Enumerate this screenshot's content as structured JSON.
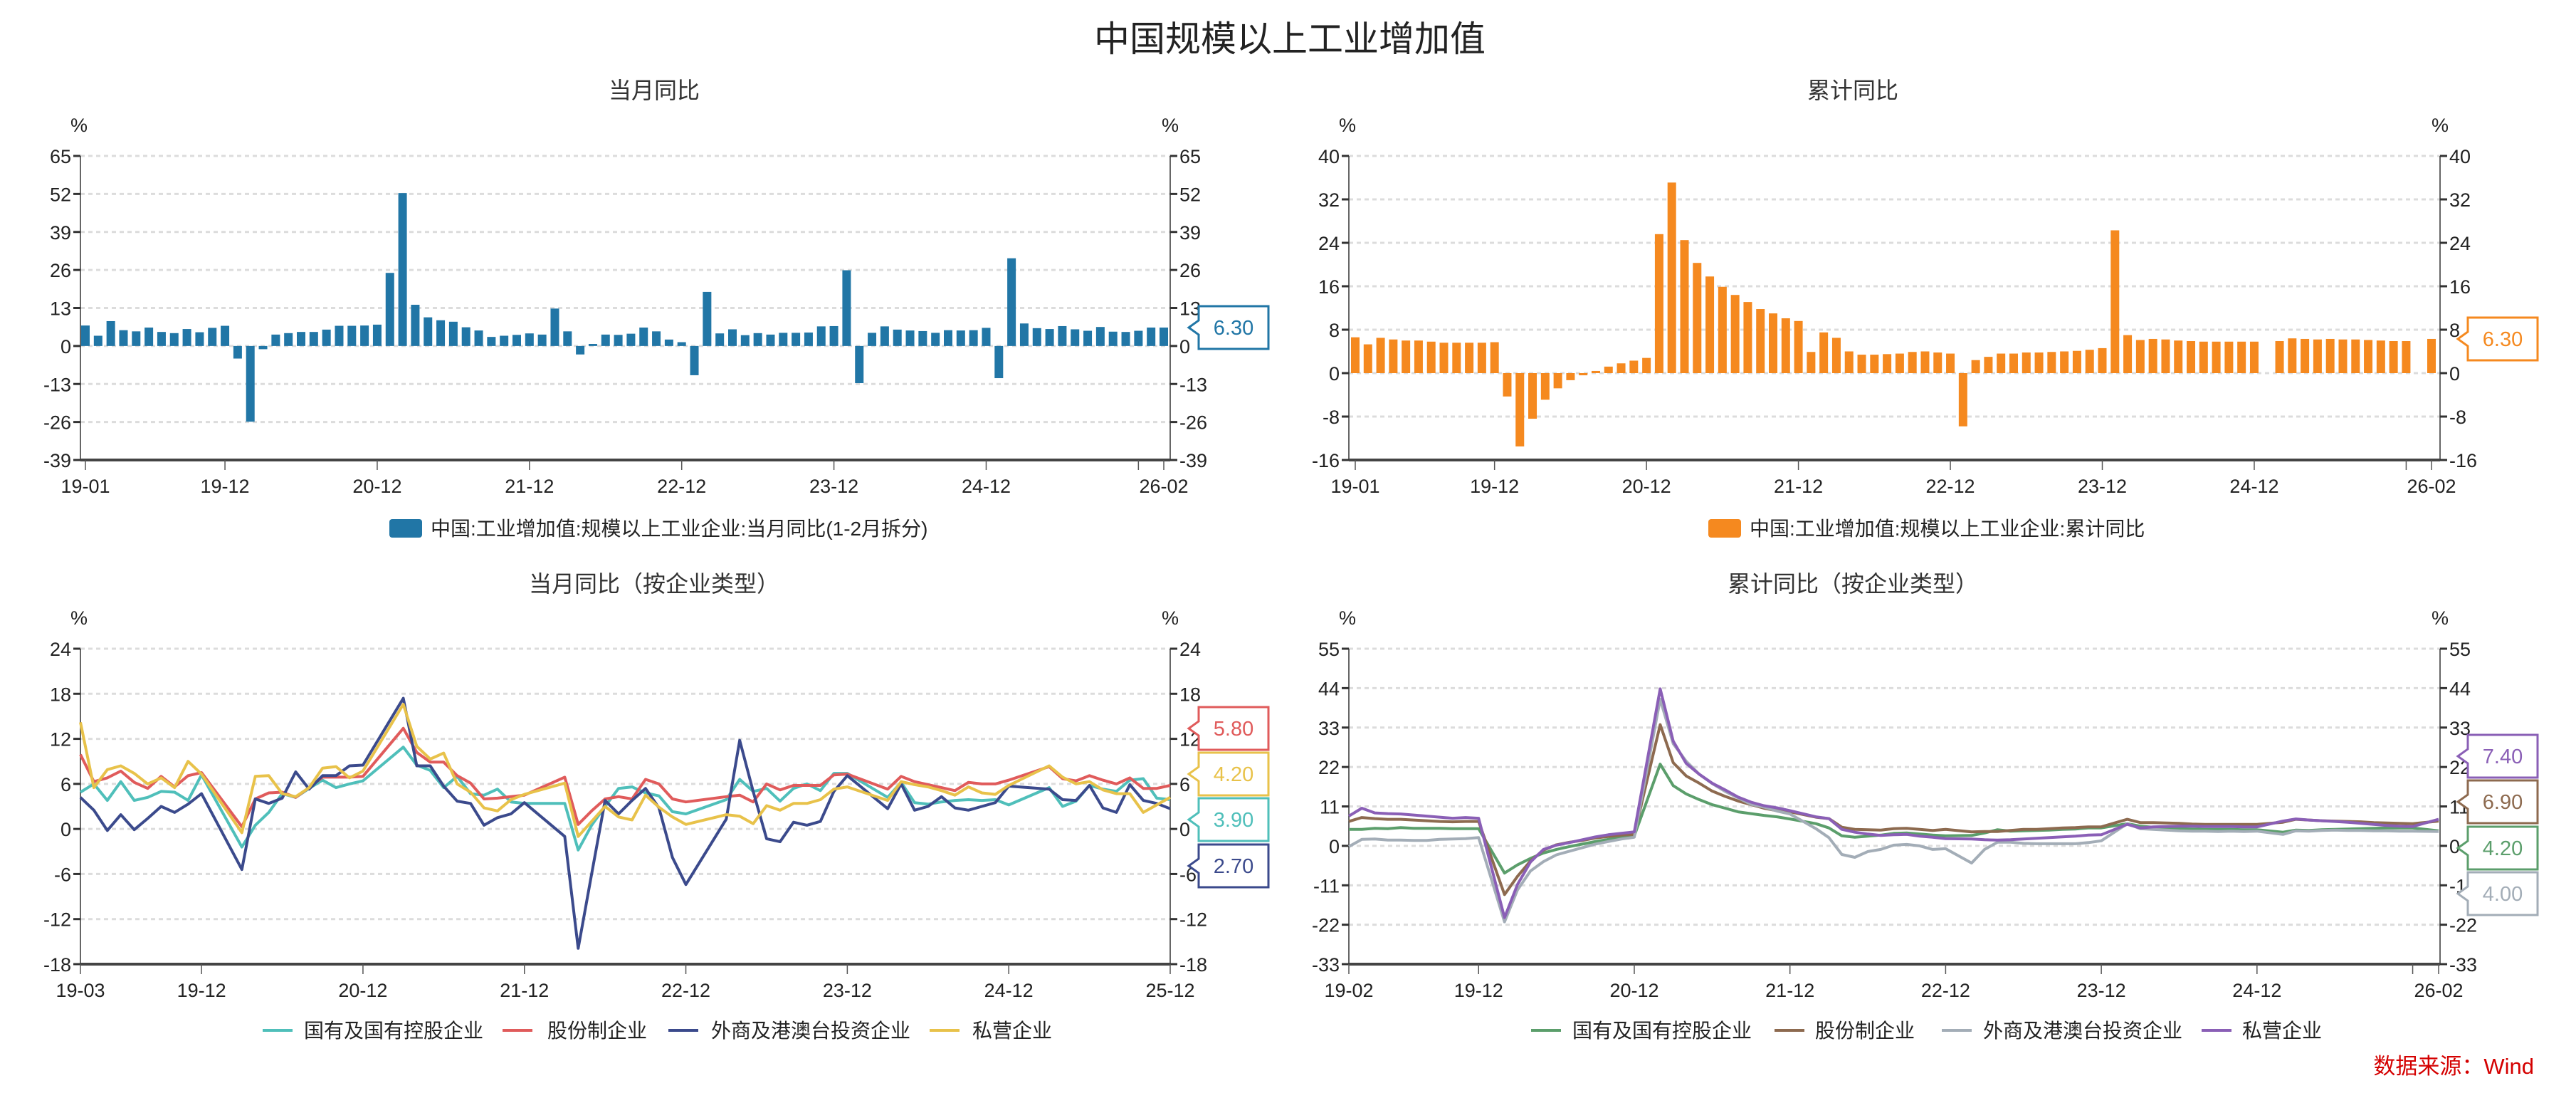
{
  "title": "中国规模以上工业增加值",
  "source": "数据来源：Wind",
  "chart_data": [
    {
      "type": "bar",
      "title": "当月同比",
      "unit_left": "%",
      "unit_right": "%",
      "ylim": [
        -39,
        65
      ],
      "yticks": [
        "65",
        "52",
        "39",
        "26",
        "13",
        "0",
        "-13",
        "-26",
        "-39"
      ],
      "xticks": [
        "19-01",
        "19-12",
        "20-12",
        "21-12",
        "22-12",
        "23-12",
        "24-12",
        "26-02"
      ],
      "x_start": "19-01",
      "x_end": "26-02",
      "grid": true,
      "legend_position": "bottom",
      "series": [
        {
          "name": "中国:工业增加值:规模以上工业企业:当月同比(1-2月拆分)",
          "color": "#2176a6",
          "last_label": "6.30",
          "values": [
            7,
            3.5,
            8.5,
            5.4,
            5,
            6.3,
            4.8,
            4.4,
            5.8,
            4.7,
            6.2,
            6.9,
            -4.3,
            -25.9,
            -1.1,
            3.9,
            4.4,
            4.8,
            4.8,
            5.6,
            6.9,
            6.9,
            7.0,
            7.3,
            25,
            52.3,
            14.1,
            9.8,
            8.8,
            8.3,
            6.4,
            5.3,
            3.1,
            3.5,
            3.8,
            4.3,
            3.9,
            12.8,
            5.0,
            -2.9,
            0.7,
            3.9,
            3.8,
            4.2,
            6.3,
            5.0,
            2.2,
            1.3,
            -10,
            18.5,
            4.3,
            5.7,
            3.7,
            4.4,
            3.9,
            4.5,
            4.5,
            4.6,
            6.7,
            6.8,
            25.9,
            -12.7,
            4.5,
            6.7,
            5.6,
            5.3,
            5.1,
            4.5,
            5.4,
            5.3,
            5.4,
            6.2,
            -11,
            30,
            7.7,
            6.1,
            5.8,
            6.8,
            5.7,
            5.2,
            6.5,
            4.9,
            4.8,
            5.2,
            6.3,
            6.3
          ]
        }
      ]
    },
    {
      "type": "bar",
      "title": "累计同比",
      "unit_left": "%",
      "unit_right": "%",
      "ylim": [
        -16,
        40
      ],
      "yticks": [
        "40",
        "32",
        "24",
        "16",
        "8",
        "0",
        "-8",
        "-16"
      ],
      "xticks": [
        "19-01",
        "19-12",
        "20-12",
        "21-12",
        "22-12",
        "23-12",
        "24-12",
        "26-02"
      ],
      "x_start": "19-01",
      "x_end": "26-02",
      "grid": true,
      "legend_position": "bottom",
      "series": [
        {
          "name": "中国:工业增加值:规模以上工业企业:累计同比",
          "color": "#f5891f",
          "last_label": "6.30",
          "values": [
            6.6,
            5.3,
            6.5,
            6.2,
            6.0,
            6.0,
            5.8,
            5.6,
            5.6,
            5.6,
            5.6,
            5.7,
            -4.3,
            -13.5,
            -8.4,
            -4.9,
            -2.8,
            -1.3,
            -0.4,
            0.4,
            1.2,
            1.8,
            2.3,
            2.8,
            25.6,
            35.1,
            24.5,
            20.3,
            17.8,
            15.9,
            14.4,
            13.1,
            11.8,
            11.0,
            10.1,
            9.6,
            3.9,
            7.5,
            6.5,
            4.0,
            3.4,
            3.4,
            3.5,
            3.6,
            3.9,
            4.0,
            3.8,
            3.6,
            -9.8,
            2.4,
            3.0,
            3.6,
            3.6,
            3.8,
            3.8,
            3.9,
            4.0,
            4.1,
            4.3,
            4.6,
            26.3,
            7.0,
            6.1,
            6.3,
            6.2,
            6.0,
            5.9,
            5.8,
            5.8,
            5.8,
            5.8,
            5.8,
            null,
            5.9,
            6.4,
            6.3,
            6.2,
            6.3,
            6.2,
            6.2,
            6.1,
            6.0,
            5.9,
            5.9,
            null,
            6.3
          ]
        }
      ]
    },
    {
      "type": "line",
      "title": "当月同比（按企业类型）",
      "unit_left": "%",
      "unit_right": "%",
      "ylim": [
        -18,
        24
      ],
      "yticks": [
        "24",
        "18",
        "12",
        "6",
        "0",
        "-6",
        "-12",
        "-18"
      ],
      "xticks": [
        "19-03",
        "19-12",
        "20-12",
        "21-12",
        "22-12",
        "23-12",
        "24-12",
        "25-12"
      ],
      "x_start": "19-03",
      "x_end": "25-12",
      "grid": true,
      "legend_position": "bottom",
      "series": [
        {
          "name": "国有及国有控股企业",
          "color": "#4fbfba",
          "last_label": "3.90",
          "values": [
            4.9,
            6.0,
            3.8,
            6.3,
            3.8,
            4.2,
            5.0,
            4.9,
            3.8,
            7.2,
            null,
            null,
            -2.4,
            0.5,
            2.2,
            4.7,
            4.2,
            5.4,
            6.5,
            5.5,
            6.0,
            6.4,
            null,
            null,
            10.9,
            8.5,
            7.8,
            5.5,
            7.0,
            4.7,
            4.5,
            5.3,
            3.6,
            3.4,
            null,
            null,
            3.4,
            -2.8,
            0.5,
            3.0,
            5.4,
            5.6,
            4.8,
            4.4,
            2.3,
            2.0,
            null,
            null,
            3.9,
            6.6,
            5.0,
            5.4,
            3.7,
            5.4,
            6.0,
            5.1,
            7.4,
            7.4,
            null,
            null,
            4.2,
            6.2,
            3.5,
            3.3,
            3.6,
            3.8,
            3.9,
            3.8,
            3.9,
            3.2,
            null,
            null,
            5.5,
            3.0,
            3.7,
            5.8,
            5.3,
            5.0,
            6.5,
            6.7,
            4.1,
            3.9
          ]
        },
        {
          "name": "股份制企业",
          "color": "#e05b5b",
          "last_label": "5.80",
          "values": [
            9.9,
            6.3,
            6.8,
            7.7,
            6.2,
            5.4,
            7.0,
            5.6,
            7.1,
            7.5,
            null,
            null,
            0.3,
            4.0,
            4.8,
            4.9,
            4.2,
            5.5,
            6.9,
            6.9,
            6.9,
            7.0,
            null,
            null,
            13.4,
            10.2,
            8.9,
            8.9,
            7.1,
            6.1,
            4.0,
            4.1,
            4.3,
            4.5,
            null,
            null,
            6.9,
            0.6,
            2.4,
            4.0,
            4.3,
            4.0,
            6.6,
            6.0,
            4.0,
            3.6,
            null,
            null,
            4.3,
            4.5,
            3.6,
            6.0,
            5.2,
            5.8,
            5.8,
            5.8,
            7.2,
            7.3,
            null,
            null,
            5.3,
            7.0,
            6.3,
            5.9,
            5.5,
            5.1,
            6.2,
            6.0,
            6.0,
            6.5,
            null,
            null,
            8.3,
            6.7,
            6.4,
            7.1,
            6.5,
            6.0,
            6.8,
            5.4,
            5.4,
            5.8
          ]
        },
        {
          "name": "外商及港澳台投资企业",
          "color": "#3b4a8c",
          "last_label": "2.70",
          "values": [
            4.2,
            2.5,
            -0.2,
            1.9,
            -0.1,
            1.4,
            3.0,
            2.2,
            3.3,
            4.7,
            null,
            null,
            -5.4,
            4.0,
            3.4,
            4.1,
            7.6,
            5.3,
            7.1,
            7.1,
            8.4,
            8.5,
            null,
            null,
            17.4,
            8.4,
            8.4,
            5.7,
            3.7,
            3.4,
            0.5,
            1.5,
            2.0,
            3.5,
            null,
            null,
            -1.0,
            -15.9,
            -6.0,
            3.8,
            2.0,
            3.8,
            5.4,
            2.8,
            -3.8,
            -7.4,
            null,
            null,
            1.3,
            11.8,
            5.0,
            -1.3,
            -1.7,
            0.9,
            0.5,
            1.0,
            5.0,
            7.1,
            null,
            null,
            2.7,
            6.0,
            2.5,
            3.0,
            4.3,
            2.8,
            2.5,
            3.0,
            3.5,
            5.7,
            null,
            null,
            5.3,
            3.9,
            3.8,
            5.8,
            2.8,
            2.2,
            5.9,
            3.8,
            3.4,
            2.7
          ]
        },
        {
          "name": "私营企业",
          "color": "#e8c24a",
          "last_label": "4.20",
          "values": [
            14.2,
            5.5,
            7.9,
            8.4,
            7.4,
            6.0,
            6.8,
            5.5,
            9.0,
            7.3,
            null,
            null,
            -0.5,
            7.0,
            7.1,
            4.7,
            4.3,
            5.5,
            8.1,
            8.3,
            6.8,
            7.7,
            null,
            null,
            16.6,
            11.0,
            9.3,
            10.1,
            6.0,
            4.9,
            2.8,
            2.4,
            3.9,
            4.6,
            null,
            null,
            6.1,
            -1.0,
            1.0,
            3.0,
            1.6,
            1.2,
            4.5,
            2.9,
            1.6,
            0.6,
            null,
            null,
            1.9,
            1.7,
            0.7,
            3.1,
            2.5,
            3.4,
            3.4,
            3.9,
            5.3,
            5.6,
            null,
            null,
            3.8,
            6.3,
            5.9,
            5.6,
            5.1,
            4.5,
            5.6,
            4.8,
            4.6,
            5.8,
            null,
            null,
            8.4,
            6.9,
            6.0,
            6.3,
            5.2,
            4.7,
            4.7,
            2.2,
            3.2,
            4.2
          ]
        }
      ]
    },
    {
      "type": "line",
      "title": "累计同比（按企业类型）",
      "unit_left": "%",
      "unit_right": "%",
      "ylim": [
        -33,
        55
      ],
      "yticks": [
        "55",
        "44",
        "33",
        "22",
        "11",
        "0",
        "-11",
        "-22",
        "-33"
      ],
      "xticks": [
        "19-02",
        "19-12",
        "20-12",
        "21-12",
        "22-12",
        "23-12",
        "24-12",
        "26-02"
      ],
      "x_start": "19-02",
      "x_end": "26-02",
      "grid": true,
      "legend_position": "bottom",
      "series": [
        {
          "name": "国有及国有控股企业",
          "color": "#5b9e6b",
          "last_label": "4.20",
          "values": [
            4.6,
            4.6,
            4.9,
            4.8,
            5.1,
            4.9,
            4.9,
            4.9,
            4.8,
            4.8,
            4.8,
            null,
            -7.6,
            -5.3,
            -3.5,
            -2.0,
            -1.0,
            -0.2,
            0.5,
            1.2,
            1.8,
            2.4,
            2.8,
            null,
            22.8,
            16.8,
            14.5,
            12.9,
            11.5,
            10.5,
            9.5,
            9.0,
            8.5,
            8.1,
            7.5,
            null,
            6.2,
            5.0,
            2.8,
            2.4,
            2.7,
            3.0,
            3.5,
            3.6,
            3.3,
            3.0,
            2.8,
            null,
            2.9,
            3.6,
            4.5,
            4.1,
            4.2,
            4.3,
            4.4,
            4.6,
            4.7,
            5.0,
            5.0,
            null,
            6.2,
            5.5,
            5.2,
            4.9,
            4.8,
            4.7,
            4.6,
            4.6,
            4.6,
            4.5,
            4.5,
            null,
            3.8,
            4.4,
            4.3,
            4.5,
            4.6,
            4.7,
            4.8,
            4.9,
            5.0,
            5.0,
            5.0,
            null,
            4.2
          ]
        },
        {
          "name": "股份制企业",
          "color": "#8d6a4f",
          "last_label": "6.90",
          "values": [
            6.8,
            7.9,
            7.6,
            7.4,
            7.4,
            7.2,
            7.0,
            6.8,
            6.7,
            6.8,
            6.8,
            null,
            -13.6,
            -8.5,
            -4.2,
            -1.2,
            0.3,
            1.0,
            1.5,
            2.2,
            2.6,
            3.0,
            3.2,
            null,
            33.8,
            23.2,
            19.5,
            17.5,
            15.3,
            13.8,
            12.5,
            11.5,
            10.5,
            9.8,
            9.5,
            null,
            8.0,
            7.6,
            5.2,
            4.6,
            4.5,
            4.4,
            4.8,
            4.9,
            4.6,
            4.3,
            4.6,
            null,
            3.9,
            4.0,
            4.0,
            4.3,
            4.6,
            4.6,
            4.8,
            5.0,
            5.1,
            5.3,
            5.3,
            null,
            7.4,
            6.5,
            6.5,
            6.4,
            6.3,
            6.1,
            6.0,
            6.0,
            6.0,
            6.0,
            6.0,
            null,
            6.6,
            7.4,
            7.2,
            7.0,
            6.9,
            6.8,
            6.7,
            6.5,
            6.4,
            6.3,
            6.2,
            null,
            6.9
          ]
        },
        {
          "name": "外商及港澳台投资企业",
          "color": "#a3adb7",
          "last_label": "4.00",
          "values": [
            -0.2,
            1.8,
            1.9,
            1.6,
            1.6,
            1.5,
            1.5,
            1.8,
            1.9,
            2.0,
            2.3,
            null,
            -21.2,
            -12.3,
            -7.0,
            -4.4,
            -2.5,
            -1.5,
            -0.5,
            0.5,
            1.2,
            1.9,
            2.4,
            null,
            40.9,
            28.5,
            23.6,
            20.0,
            17.4,
            15.2,
            13.4,
            11.6,
            10.8,
            9.7,
            8.9,
            null,
            4.8,
            2.3,
            -2.4,
            -3.2,
            -1.6,
            -1.0,
            0.2,
            0.4,
            0.0,
            -1.0,
            -0.8,
            null,
            -4.8,
            -1.0,
            1.0,
            1.0,
            0.7,
            0.6,
            0.6,
            0.6,
            0.6,
            0.9,
            1.4,
            null,
            6.2,
            4.8,
            4.6,
            4.4,
            4.2,
            4.1,
            4.1,
            4.0,
            4.1,
            4.0,
            4.1,
            null,
            3.2,
            4.2,
            4.1,
            4.3,
            4.4,
            4.3,
            4.3,
            4.2,
            4.2,
            4.1,
            4.1,
            null,
            4.0
          ]
        },
        {
          "name": "私营企业",
          "color": "#8a5fb6",
          "last_label": "7.40",
          "values": [
            8.3,
            10.5,
            9.2,
            9.0,
            8.9,
            8.6,
            8.3,
            8.0,
            7.7,
            7.9,
            7.7,
            null,
            -20.0,
            -10.8,
            -4.5,
            -1.0,
            0.2,
            0.9,
            1.7,
            2.5,
            3.1,
            3.5,
            3.9,
            null,
            43.8,
            29.2,
            23.0,
            20.0,
            17.5,
            15.6,
            13.6,
            12.2,
            11.2,
            10.6,
            9.8,
            null,
            8.1,
            7.6,
            4.6,
            3.8,
            3.3,
            2.9,
            3.1,
            3.2,
            2.7,
            2.4,
            2.0,
            null,
            1.9,
            1.7,
            1.6,
            1.7,
            1.9,
            2.1,
            2.3,
            2.5,
            2.7,
            3.0,
            3.1,
            null,
            6.0,
            5.0,
            5.3,
            5.4,
            5.5,
            5.5,
            5.4,
            5.4,
            5.4,
            5.3,
            5.3,
            null,
            6.9,
            7.5,
            7.2,
            7.0,
            6.8,
            6.6,
            6.3,
            6.0,
            5.7,
            5.5,
            5.4,
            null,
            7.4
          ]
        }
      ]
    }
  ]
}
